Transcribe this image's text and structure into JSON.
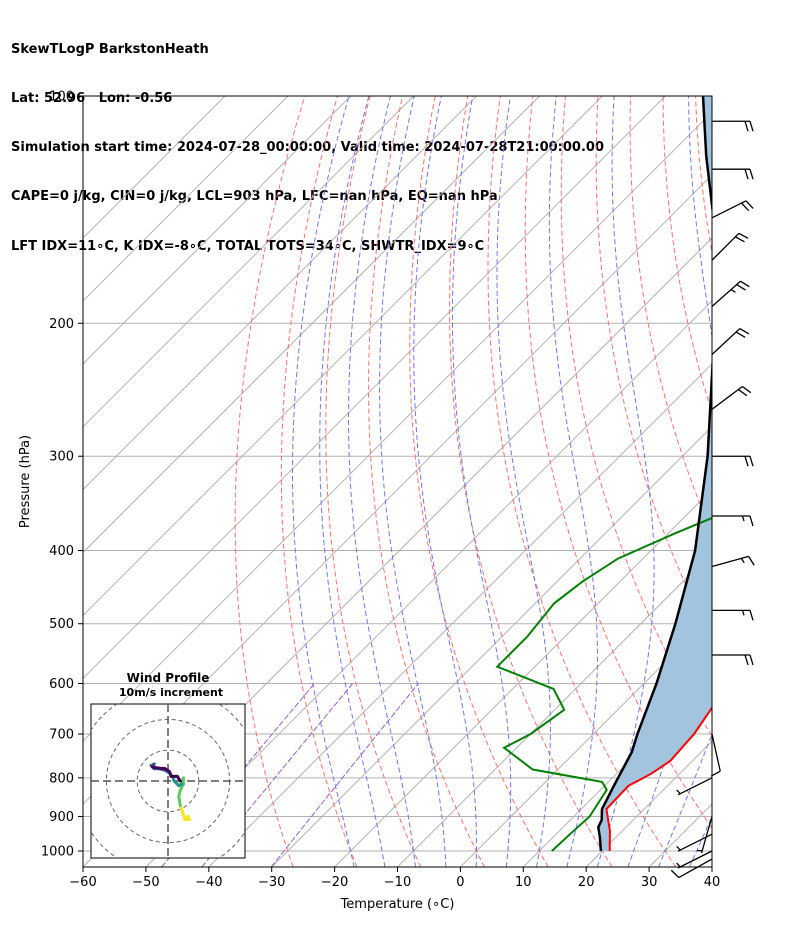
{
  "header": {
    "lines": [
      "SkewTLogP BarkstonHeath",
      "Lat: 52.96   Lon: -0.56",
      "Simulation start time: 2024-07-28_00:00:00, Valid time: 2024-07-28T21:00:00.00",
      "CAPE=0 j/kg, CIN=0 j/kg, LCL=903 hPa, LFC=nan hPa, EQ=nan hPa",
      "LFT IDX=11∘C, K IDX=-8∘C, TOTAL TOTS=34∘C, SHWTR_IDX=9∘C"
    ]
  },
  "chart_data": {
    "type": "line",
    "title": "SkewTLogP BarkstonHeath",
    "xlabel": "Temperature (∘C)",
    "ylabel": "Pressure (hPa)",
    "xlim": [
      -60,
      40
    ],
    "ylim": [
      1050,
      100
    ],
    "y_scale": "log",
    "grid": true,
    "x_ticks": [
      -60,
      -50,
      -40,
      -30,
      -20,
      -10,
      0,
      10,
      20,
      30,
      40
    ],
    "y_ticks": [
      1000,
      900,
      800,
      700,
      600,
      500,
      400,
      300,
      200,
      100
    ],
    "colors": {
      "temperature": "#ff0000",
      "dewpoint": "#008000",
      "parcel": "#000000",
      "cape_fill": "#a2c4de",
      "dry_adiabat": "#f87171",
      "moist_adiabat": "#7177ea",
      "mixing_ratio": "#9a5cc6",
      "isotherm": "#b2b2b2"
    },
    "series": [
      {
        "key": "temperature",
        "points": [
          [
            21.2,
            1000
          ],
          [
            18.0,
            940
          ],
          [
            14.0,
            880
          ],
          [
            13.8,
            820
          ],
          [
            15.5,
            790
          ],
          [
            16.5,
            760
          ],
          [
            16.0,
            700
          ],
          [
            14.0,
            620
          ],
          [
            12.0,
            550
          ],
          [
            9.0,
            480
          ],
          [
            5.0,
            420
          ],
          [
            0.0,
            370
          ],
          [
            -4.0,
            320
          ],
          [
            -7.0,
            290
          ],
          [
            -12.0,
            250
          ],
          [
            -15.0,
            220
          ],
          [
            -16.5,
            200
          ],
          [
            -15.5,
            190
          ],
          [
            -14.0,
            180
          ],
          [
            -11.5,
            167
          ],
          [
            -9.0,
            157
          ],
          [
            -4.5,
            141
          ],
          [
            -2.5,
            133
          ],
          [
            -2.0,
            125
          ],
          [
            -1.5,
            118
          ],
          [
            0.5,
            110
          ],
          [
            2.0,
            100
          ]
        ]
      },
      {
        "key": "dewpoint",
        "points": [
          [
            12.0,
            1000
          ],
          [
            12.2,
            950
          ],
          [
            12.5,
            900
          ],
          [
            11.0,
            830
          ],
          [
            9.0,
            810
          ],
          [
            -4.0,
            780
          ],
          [
            -12.0,
            730
          ],
          [
            -10.0,
            700
          ],
          [
            -8.5,
            650
          ],
          [
            -13.5,
            610
          ],
          [
            -26.0,
            570
          ],
          [
            -26.0,
            520
          ],
          [
            -27.0,
            470
          ],
          [
            -26.0,
            440
          ],
          [
            -24.0,
            410
          ],
          [
            -19.0,
            380
          ],
          [
            -13.0,
            350
          ],
          [
            -11.0,
            330
          ],
          [
            -13.0,
            305
          ],
          [
            -19.0,
            290
          ],
          [
            -20.5,
            270
          ],
          [
            -23.0,
            260
          ],
          [
            -24.5,
            240
          ],
          [
            -27.0,
            225
          ],
          [
            -29.0,
            205
          ],
          [
            -31.0,
            190
          ],
          [
            -32.0,
            180
          ],
          [
            -33.0,
            165
          ],
          [
            -35.0,
            155
          ],
          [
            -37.0,
            145
          ],
          [
            -38.5,
            130
          ],
          [
            -33.5,
            120
          ],
          [
            -31.0,
            110
          ],
          [
            -28.0,
            100
          ]
        ]
      },
      {
        "key": "parcel",
        "points": [
          [
            19.8,
            1000
          ],
          [
            17.5,
            960
          ],
          [
            15.6,
            930
          ],
          [
            15.0,
            910
          ],
          [
            13.3,
            880
          ],
          [
            11.5,
            820
          ],
          [
            9.0,
            740
          ],
          [
            7.0,
            700
          ],
          [
            2.0,
            600
          ],
          [
            -4.5,
            500
          ],
          [
            -13.0,
            400
          ],
          [
            -26.0,
            300
          ],
          [
            -46.0,
            200
          ],
          [
            -61.0,
            150
          ],
          [
            -74.0,
            120
          ],
          [
            -84.0,
            100
          ]
        ]
      }
    ],
    "wind_barbs": [
      {
        "p": 1025,
        "u": 9,
        "v": 5
      },
      {
        "p": 1000,
        "u": 8,
        "v": 4
      },
      {
        "p": 950,
        "u": 6,
        "v": 3
      },
      {
        "p": 900,
        "u": 2,
        "v": 7
      },
      {
        "p": 800,
        "u": 4,
        "v": 2
      },
      {
        "p": 700,
        "u": -2,
        "v": 9
      },
      {
        "p": 550,
        "u": -20,
        "v": 0
      },
      {
        "p": 480,
        "u": -18,
        "v": 0
      },
      {
        "p": 420,
        "u": -18,
        "v": -5
      },
      {
        "p": 360,
        "u": -18,
        "v": 0
      },
      {
        "p": 300,
        "u": -20,
        "v": 0
      },
      {
        "p": 260,
        "u": -16,
        "v": -12
      },
      {
        "p": 220,
        "u": -15,
        "v": -14
      },
      {
        "p": 190,
        "u": -18,
        "v": -16
      },
      {
        "p": 165,
        "u": -15,
        "v": -15
      },
      {
        "p": 145,
        "u": -18,
        "v": -9
      },
      {
        "p": 125,
        "u": -22,
        "v": 0
      },
      {
        "p": 108,
        "u": -20,
        "v": 0
      }
    ],
    "hodograph": {
      "title": "Wind Profile",
      "subtitle": "10m/s increment",
      "rings": [
        10,
        20,
        30
      ],
      "range": 25,
      "points": [
        [
          5.5,
          -12
        ],
        [
          6.5,
          -11.5
        ],
        [
          7.0,
          -12.5
        ],
        [
          5.5,
          -12.5
        ],
        [
          5.0,
          -11
        ],
        [
          4.0,
          -8
        ],
        [
          3.5,
          -5
        ],
        [
          4.0,
          -3
        ],
        [
          5.0,
          -1
        ],
        [
          5.0,
          1
        ],
        [
          4.5,
          -1
        ],
        [
          3.5,
          -1.5
        ],
        [
          2.0,
          0
        ],
        [
          1.5,
          1.5
        ],
        [
          0.5,
          2.5
        ],
        [
          -1.0,
          3.5
        ],
        [
          -3.0,
          4.0
        ],
        [
          -4.5,
          4.0
        ],
        [
          -5.5,
          5.0
        ],
        [
          -4.5,
          5.5
        ],
        [
          -5.0,
          4.5
        ],
        [
          -3.0,
          4.2
        ],
        [
          -1.0,
          4.0
        ],
        [
          0.5,
          3.0
        ],
        [
          1.0,
          1.5
        ],
        [
          3.0,
          1.5
        ],
        [
          4.0,
          0
        ]
      ]
    }
  }
}
